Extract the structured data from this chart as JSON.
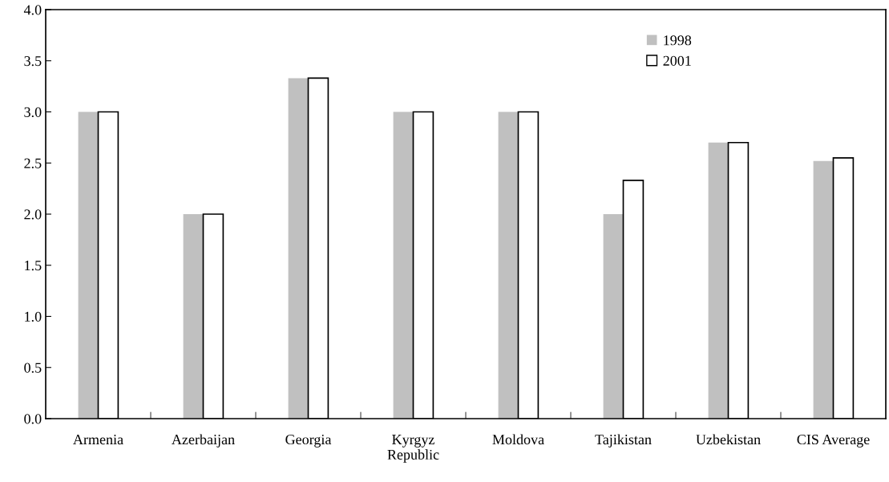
{
  "chart_data": {
    "type": "bar",
    "categories": [
      "Armenia",
      "Azerbaijan",
      "Georgia",
      "Kyrgyz\nRepublic",
      "Moldova",
      "Tajikistan",
      "Uzbekistan",
      "CIS Average"
    ],
    "series": [
      {
        "name": "1998",
        "color": "#c0c0c0",
        "values": [
          3.0,
          2.0,
          3.33,
          3.0,
          3.0,
          2.0,
          2.7,
          2.52
        ]
      },
      {
        "name": "2001",
        "color": "#ffffff",
        "values": [
          3.0,
          2.0,
          3.33,
          3.0,
          3.0,
          2.33,
          2.7,
          2.55
        ]
      }
    ],
    "ylim": [
      0,
      4
    ],
    "yticks": [
      {
        "value": 0,
        "label": "0.0"
      },
      {
        "value": 0.5,
        "label": "0.5"
      },
      {
        "value": 1,
        "label": "1.0"
      },
      {
        "value": 1.5,
        "label": "1.5"
      },
      {
        "value": 2,
        "label": "2.0"
      },
      {
        "value": 2.5,
        "label": "2.5"
      },
      {
        "value": 3,
        "label": "3.0"
      },
      {
        "value": 3.5,
        "label": "3.5"
      },
      {
        "value": 4,
        "label": "4.0"
      }
    ],
    "grid": false,
    "legend": "top right"
  }
}
